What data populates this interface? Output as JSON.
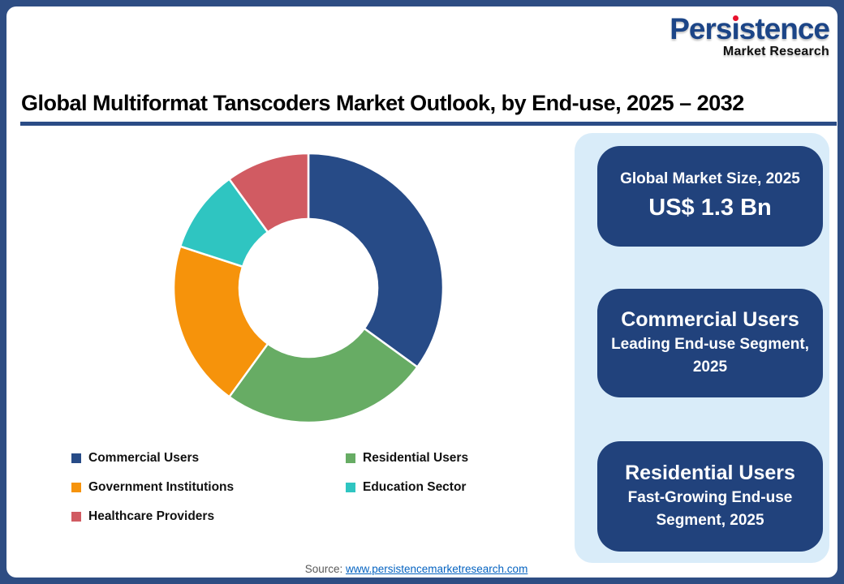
{
  "logo": {
    "part1": "Pers",
    "part2": "ı",
    "part3": "stence",
    "line2": "Market Research",
    "brand_color": "#1C4587",
    "dot_color": "#E8112D"
  },
  "title": "Global Multiformat Tanscoders Market Outlook, by End-use, 2025 – 2032",
  "chart_data": {
    "type": "pie",
    "donut": true,
    "inner_radius_ratio": 0.52,
    "start_angle_deg": 0,
    "direction": "clockwise",
    "title": "Global Multiformat Tanscoders Market Outlook, by End-use, 2025 – 2032",
    "unit": "percent share, estimated from arc angles",
    "segments": [
      {
        "label": "Commercial Users",
        "value": 35,
        "color": "#274B87"
      },
      {
        "label": "Residential Users",
        "value": 25,
        "color": "#67AC64"
      },
      {
        "label": "Government Institutions",
        "value": 20,
        "color": "#F6930B"
      },
      {
        "label": "Education Sector",
        "value": 10,
        "color": "#2FC5C1"
      },
      {
        "label": "Healthcare Providers",
        "value": 10,
        "color": "#D15B62"
      }
    ],
    "legend_position": "bottom",
    "slice_gap_color": "#FFFFFF"
  },
  "cards": [
    {
      "line1": "Global Market Size, 2025",
      "line2": "US$ 1.3 Bn"
    },
    {
      "line1": "Commercial Users",
      "line2": "Leading End-use Segment, 2025"
    },
    {
      "line1": "Residential Users",
      "line2": "Fast-Growing End-use Segment, 2025"
    }
  ],
  "footer": {
    "source_label": "Source:",
    "source_link": "www.persistencemarketresearch.com"
  },
  "colors": {
    "frame_border": "#2E4D83",
    "title_underline": "#2B4C86",
    "panel_bg": "#D9ECF9",
    "card_bg": "#21427C",
    "link": "#0563C1"
  }
}
